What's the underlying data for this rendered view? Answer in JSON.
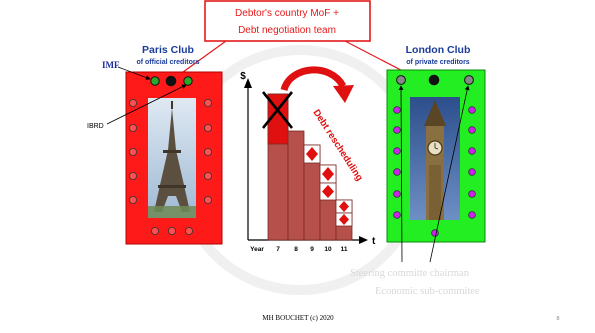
{
  "header": {
    "line1": "Debtor's country MoF +",
    "line2": "Debt negotiation team"
  },
  "paris_club": {
    "title": "Paris Club",
    "subtitle": "of official creditors",
    "imf_label": "IMF",
    "ibrd_label": "IBRD",
    "photo": "eiffel-tower"
  },
  "london_club": {
    "title": "London Club",
    "subtitle": "of private creditors",
    "photo": "big-ben"
  },
  "chart": {
    "y_axis_symbol": "$",
    "x_axis_symbol": "t",
    "x_prefix": "Year",
    "years": [
      "7",
      "8",
      "9",
      "10",
      "11"
    ],
    "arrow_label": "Debt rescheduling"
  },
  "notes": {
    "steering": "Steering committe chairman",
    "economic": "Economic sub-commitee"
  },
  "footer": {
    "credit": "MH BOUCHET (c) 2020",
    "page": "8"
  },
  "colors": {
    "paris_red": "#ff1a1a",
    "london_green": "#22ee22",
    "bar_dark_red": "#b5504a",
    "bar_red_top": "#e01010",
    "header_red": "#e41a1a",
    "title_blue": "#1a3c9a",
    "imf_blue": "#1a2a9a"
  }
}
